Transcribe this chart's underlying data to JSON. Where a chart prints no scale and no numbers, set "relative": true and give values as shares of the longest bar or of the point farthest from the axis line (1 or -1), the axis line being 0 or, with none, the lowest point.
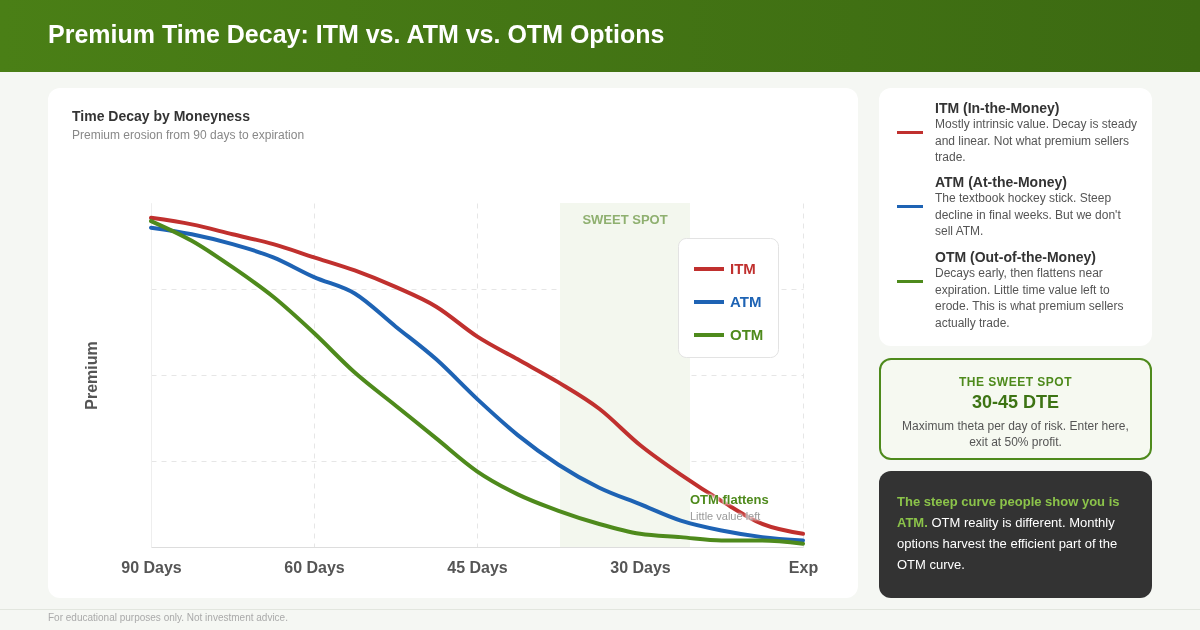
{
  "chart_data": {
    "type": "line",
    "title": "Time Decay by Moneyness",
    "subtitle": "Premium erosion from 90 days to expiration",
    "ylabel": "Premium",
    "relative": true,
    "categories": [
      "90 Days",
      null,
      null,
      null,
      "60 Days",
      null,
      null,
      null,
      "45 Days",
      null,
      null,
      null,
      "30 Days",
      null,
      null,
      null,
      "Exp"
    ],
    "series": [
      {
        "name": "ITM",
        "color": "#c0302e",
        "values": [
          1,
          0.98,
          0.95,
          0.92,
          0.88,
          0.84,
          0.79,
          0.73,
          0.64,
          0.57,
          0.5,
          0.42,
          0.31,
          0.22,
          0.14,
          0.07,
          0.04
        ]
      },
      {
        "name": "ATM",
        "color": "#1e63b4",
        "values": [
          0.97,
          0.95,
          0.92,
          0.88,
          0.82,
          0.77,
          0.67,
          0.57,
          0.45,
          0.34,
          0.25,
          0.18,
          0.13,
          0.08,
          0.05,
          0.03,
          0.02
        ]
      },
      {
        "name": "OTM",
        "color": "#4e8a1c",
        "values": [
          0.99,
          0.93,
          0.85,
          0.76,
          0.65,
          0.53,
          0.43,
          0.33,
          0.23,
          0.16,
          0.11,
          0.07,
          0.04,
          0.03,
          0.02,
          0.02,
          0.01
        ]
      }
    ],
    "grid": true,
    "legend": "top right",
    "line_style": "solid",
    "annotations": [
      "Premium Time Decay: ITM vs. ATM vs. OTM Options",
      "ITM (In-the-Money)",
      "Mostly intrinsic value. Decay is steady and linear. Not what premium sellers trade.",
      "ATM (At-the-Money)",
      "The textbook hockey stick. Steep decline in final weeks. But we don't sell ATM.",
      "OTM (Out-of-the-Money)",
      "Decays early, then flattens near expiration. Little time value left to erode. This is what premium sellers actually trade.",
      "THE SWEET SPOT",
      "30-45 DTE",
      "Maximum theta per day of risk. Enter here, exit at 50% profit.",
      "The steep curve people show you is ATM.",
      "OTM reality is different. Monthly options harvest the efficient part of the OTM curve.",
      "For educational purposes only. Not investment advice.",
      "OTM flattens",
      "Little value left",
      "SWEET SPOT"
    ]
  }
}
